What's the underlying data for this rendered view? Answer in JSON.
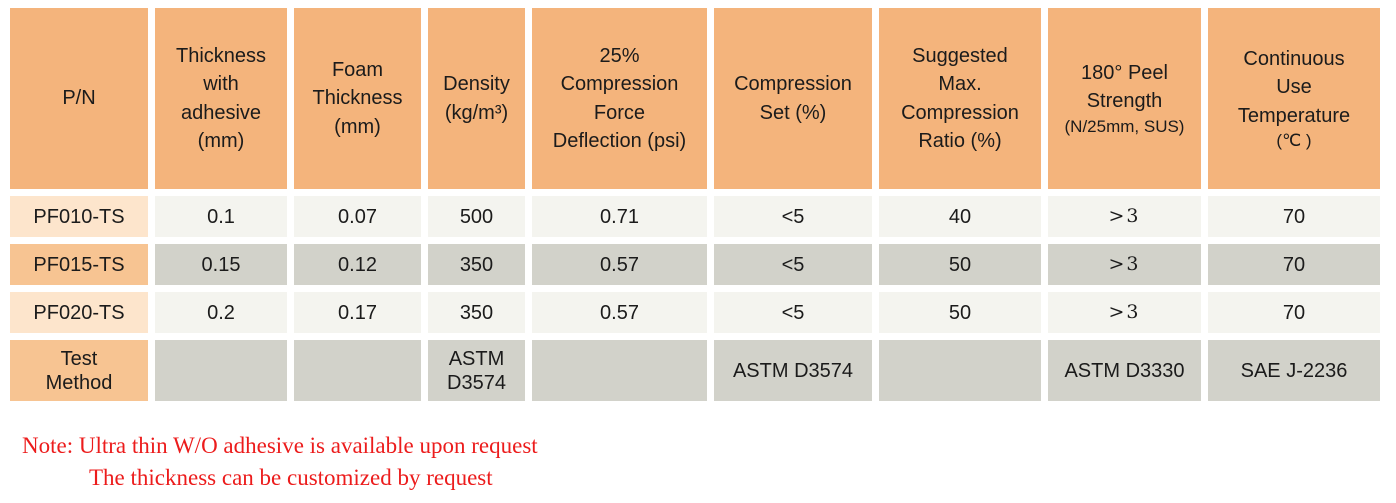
{
  "colors": {
    "header_orange": "#F4B47C",
    "pn_row_light": "#FDE5CC",
    "pn_row_medium": "#F7C492",
    "data_row_light": "#F4F4EF",
    "data_row_gray": "#D2D2CA",
    "note_red": "#EC1C1C",
    "text": "#1B1B1B"
  },
  "table": {
    "columns": [
      {
        "label": "P/N",
        "sublabel": ""
      },
      {
        "label": "Thickness\nwith\nadhesive\n(mm)",
        "sublabel": ""
      },
      {
        "label": "Foam\nThickness\n(mm)",
        "sublabel": ""
      },
      {
        "label": "Density\n(kg/m³)",
        "sublabel": ""
      },
      {
        "label": "25%\nCompression\nForce\nDeflection (psi)",
        "sublabel": ""
      },
      {
        "label": "Compression\nSet (%)",
        "sublabel": ""
      },
      {
        "label": "Suggested\nMax.\nCompression\nRatio (%)",
        "sublabel": ""
      },
      {
        "label": "180° Peel\nStrength",
        "sublabel": "(N/25mm, SUS)"
      },
      {
        "label": "Continuous\nUse\nTemperature",
        "sublabel": "(℃ )"
      }
    ],
    "rows": [
      {
        "pn": "PF010-TS",
        "values": [
          "0.1",
          "0.07",
          "500",
          "0.71",
          "<5",
          "40",
          ">3",
          "70"
        ]
      },
      {
        "pn": "PF015-TS",
        "values": [
          "0.15",
          "0.12",
          "350",
          "0.57",
          "<5",
          "50",
          ">3",
          "70"
        ]
      },
      {
        "pn": "PF020-TS",
        "values": [
          "0.2",
          "0.17",
          "350",
          "0.57",
          "<5",
          "50",
          ">3",
          "70"
        ]
      },
      {
        "pn": "Test\nMethod",
        "values": [
          "",
          "",
          "ASTM D3574",
          "",
          "ASTM D3574",
          "",
          "ASTM D3330",
          "SAE J-2236"
        ]
      }
    ]
  },
  "note": {
    "line1": "Note: Ultra thin W/O adhesive is available upon request",
    "line2": "The thickness can be customized by request"
  }
}
